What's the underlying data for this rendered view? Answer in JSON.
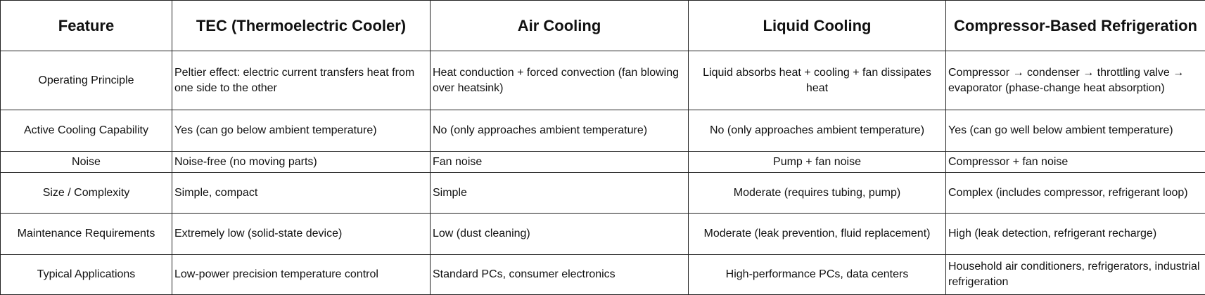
{
  "table": {
    "header": [
      "Feature",
      "TEC (Thermoelectric Cooler)",
      "Air Cooling",
      "Liquid Cooling",
      "Compressor-Based Refrigeration"
    ],
    "rows": [
      [
        "Operating Principle",
        "Peltier effect: electric current transfers heat from one side to the other",
        "Heat conduction + forced convection (fan blowing over heatsink)",
        "Liquid absorbs heat + cooling + fan dissipates heat",
        "Compressor → condenser → throttling valve → evaporator (phase-change heat absorption)"
      ],
      [
        "Active Cooling Capability",
        "Yes (can go below ambient temperature)",
        "No (only approaches ambient temperature)",
        "No (only approaches ambient temperature)",
        "Yes (can go well below ambient temperature)"
      ],
      [
        "Noise",
        "Noise-free (no moving parts)",
        "Fan noise",
        "Pump + fan noise",
        "Compressor + fan noise"
      ],
      [
        "Size / Complexity",
        "Simple, compact",
        "Simple",
        "Moderate (requires tubing, pump)",
        "Complex (includes compressor, refrigerant loop)"
      ],
      [
        "Maintenance Requirements",
        "Extremely low (solid-state device)",
        "Low (dust cleaning)",
        "Moderate (leak prevention, fluid replacement)",
        "High (leak detection, refrigerant recharge)"
      ],
      [
        "Typical Applications",
        "Low-power precision temperature control",
        "Standard PCs, consumer electronics",
        "High-performance PCs, data centers",
        "Household air conditioners, refrigerators, industrial refrigeration"
      ]
    ]
  }
}
